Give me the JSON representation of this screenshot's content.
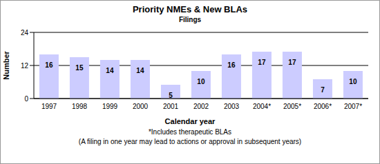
{
  "chart_data": {
    "type": "bar",
    "title": "Priority NMEs & New BLAs",
    "subtitle": "Filings",
    "x_label": "Calendar year",
    "y_label": "Number",
    "annotations": [
      "*Includes therapeutic BLAs",
      "(A filing in one year may lead to actions or approval in subsequent years)"
    ],
    "categories": [
      "1997",
      "1998",
      "1999",
      "2000",
      "2001",
      "2002",
      "2003",
      "2004*",
      "2005*",
      "2006*",
      "2007*"
    ],
    "values": [
      16,
      15,
      14,
      14,
      5,
      10,
      16,
      17,
      17,
      7,
      10
    ],
    "color": "#ccccff",
    "ylim": [
      0,
      24
    ],
    "yticks": [
      0,
      12,
      24
    ],
    "grid": true,
    "data_labels": true
  }
}
